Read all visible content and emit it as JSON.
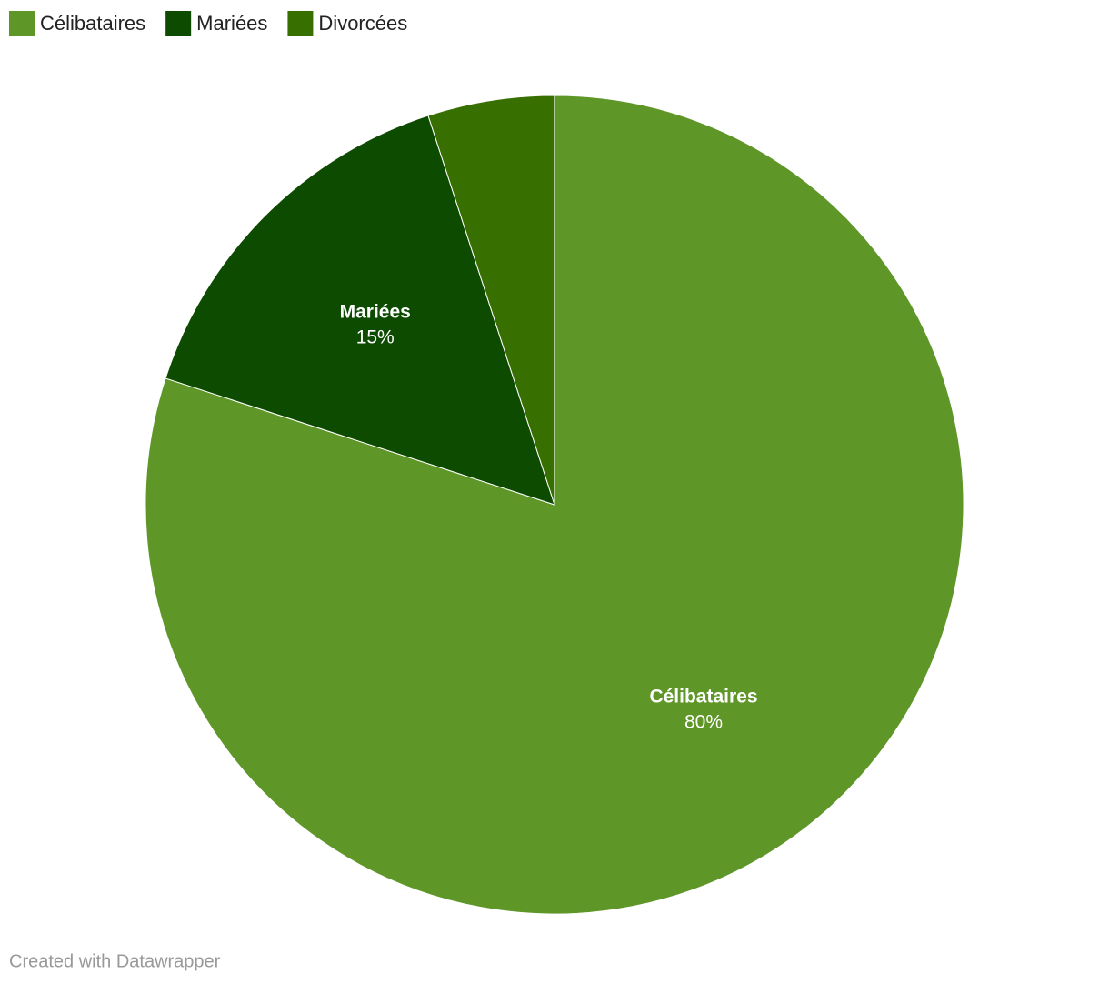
{
  "chart_data": {
    "type": "pie",
    "categories": [
      "Célibataires",
      "Mariées",
      "Divorcées"
    ],
    "values": [
      80,
      15,
      5
    ],
    "value_labels": [
      "80%",
      "15%",
      null
    ],
    "colors": [
      "#5f9628",
      "#0d4c00",
      "#376f00"
    ],
    "legend": "top-left",
    "credit": "Created with Datawrapper"
  }
}
